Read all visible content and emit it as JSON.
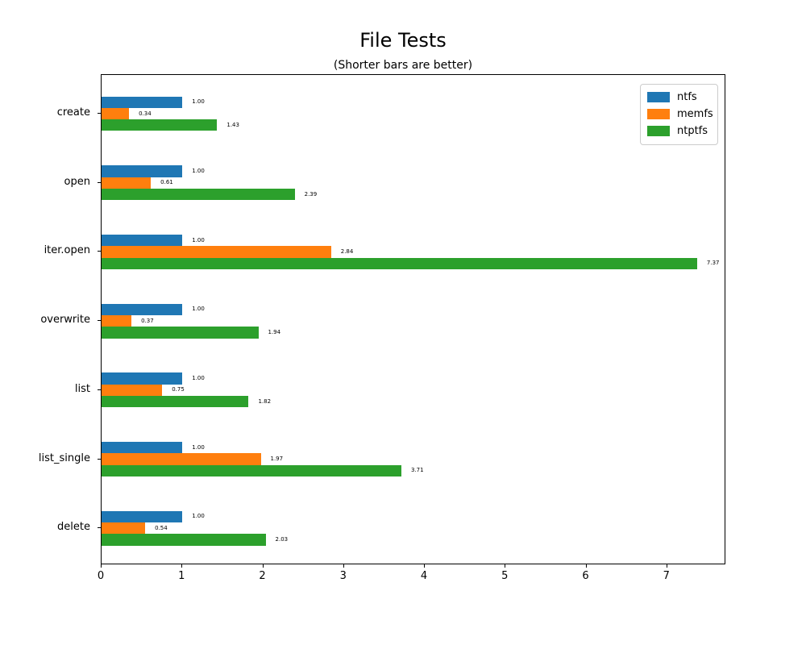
{
  "chart_data": {
    "type": "bar",
    "orientation": "horizontal",
    "title": "File Tests",
    "subtitle": "(Shorter bars are better)",
    "categories": [
      "create",
      "open",
      "iter.open",
      "overwrite",
      "list",
      "list_single",
      "delete"
    ],
    "series": [
      {
        "name": "ntfs",
        "color": "#1f77b4",
        "values": [
          1.0,
          1.0,
          1.0,
          1.0,
          1.0,
          1.0,
          1.0
        ]
      },
      {
        "name": "memfs",
        "color": "#ff7f0e",
        "values": [
          0.34,
          0.61,
          2.84,
          0.37,
          0.75,
          1.97,
          0.54
        ]
      },
      {
        "name": "ntptfs",
        "color": "#2ca02c",
        "values": [
          1.43,
          2.39,
          7.37,
          1.94,
          1.82,
          3.71,
          2.03
        ]
      }
    ],
    "bar_value_labels": [
      [
        "1.00",
        "0.34",
        "1.43"
      ],
      [
        "1.00",
        "0.61",
        "2.39"
      ],
      [
        "1.00",
        "2.84",
        "7.37"
      ],
      [
        "1.00",
        "0.37",
        "1.94"
      ],
      [
        "1.00",
        "0.75",
        "1.82"
      ],
      [
        "1.00",
        "1.97",
        "3.71"
      ],
      [
        "1.00",
        "0.54",
        "2.03"
      ]
    ],
    "xticks": [
      "0",
      "1",
      "2",
      "3",
      "4",
      "5",
      "6",
      "7"
    ],
    "xlim": [
      0,
      7.73
    ],
    "legend_position": "upper right",
    "legend_entries": [
      "ntfs",
      "memfs",
      "ntptfs"
    ],
    "grid": false
  }
}
